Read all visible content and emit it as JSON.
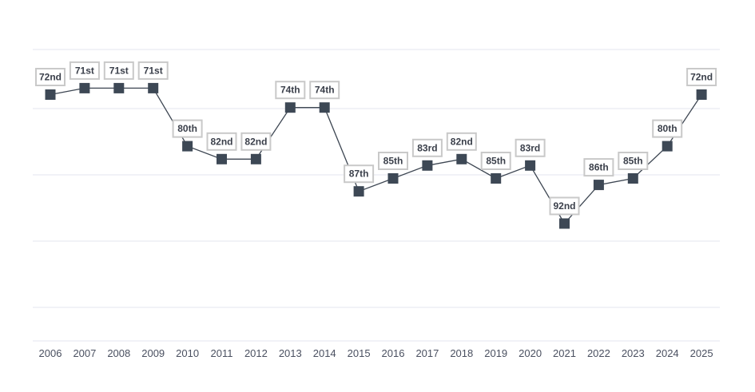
{
  "chart_data": {
    "type": "line",
    "x": [
      "2006",
      "2007",
      "2008",
      "2009",
      "2010",
      "2011",
      "2012",
      "2013",
      "2014",
      "2015",
      "2016",
      "2017",
      "2018",
      "2019",
      "2020",
      "2021",
      "2022",
      "2023",
      "2024",
      "2025"
    ],
    "series": [
      {
        "values": [
          72,
          71,
          71,
          71,
          80,
          82,
          82,
          74,
          74,
          87,
          85,
          83,
          82,
          85,
          83,
          92,
          86,
          85,
          80,
          72
        ],
        "labels": [
          "72nd",
          "71st",
          "71st",
          "71st",
          "80th",
          "82nd",
          "82nd",
          "74th",
          "74th",
          "87th",
          "85th",
          "83rd",
          "82nd",
          "85th",
          "83rd",
          "92nd",
          "86th",
          "85th",
          "80th",
          "72nd"
        ]
      }
    ],
    "y_axis": {
      "inverted": true,
      "ylim": [
        65,
        105
      ],
      "tick_labels_shown": false
    },
    "grid": true,
    "title": "",
    "xlabel": "",
    "ylabel": ""
  },
  "colors": {
    "line": "#3d4652",
    "marker": "#3d4855",
    "label_border": "#c9c9c9",
    "grid": "#e3e5ef"
  }
}
